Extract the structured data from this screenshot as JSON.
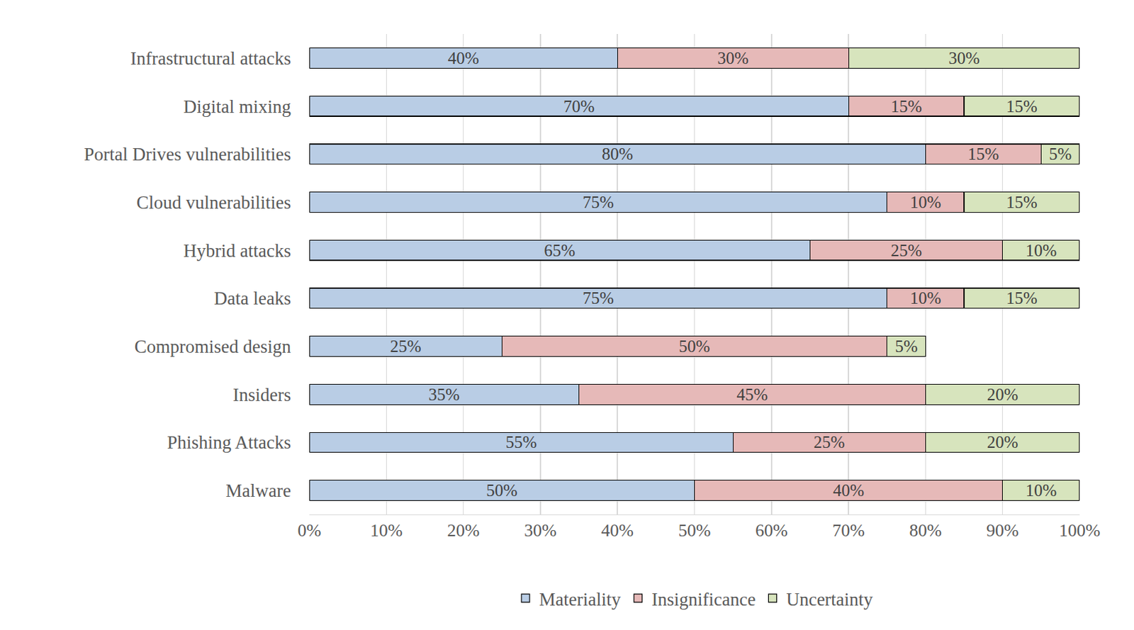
{
  "chart_data": {
    "type": "bar",
    "orientation": "horizontal",
    "stacked": true,
    "data_labels": true,
    "grid": true,
    "legend": "bottom",
    "categories": [
      "Infrastructural attacks",
      "Digital mixing",
      "Portal Drives vulnerabilities",
      "Cloud vulnerabilities",
      "Hybrid attacks",
      "Data leaks",
      "Compromised design",
      "Insiders",
      "Phishing Attacks",
      "Malware"
    ],
    "series": [
      {
        "name": "Materiality",
        "color": "#b9cde5",
        "values": [
          40,
          70,
          80,
          75,
          65,
          75,
          25,
          35,
          55,
          50
        ],
        "value_labels": [
          "40%",
          "70%",
          "80%",
          "75%",
          "65%",
          "75%",
          "25%",
          "35%",
          "55%",
          "50%"
        ]
      },
      {
        "name": "Insignificance",
        "color": "#e6b9b8",
        "values": [
          30,
          15,
          15,
          10,
          25,
          10,
          50,
          45,
          25,
          40
        ],
        "value_labels": [
          "30%",
          "15%",
          "15%",
          "10%",
          "25%",
          "10%",
          "50%",
          "45%",
          "25%",
          "40%"
        ]
      },
      {
        "name": "Uncertainty",
        "color": "#d7e4bd",
        "values": [
          30,
          15,
          5,
          15,
          10,
          15,
          5,
          20,
          20,
          10
        ],
        "value_labels": [
          "30%",
          "15%",
          "5%",
          "15%",
          "10%",
          "15%",
          "5%",
          "20%",
          "20%",
          "10%"
        ]
      }
    ],
    "xlim": [
      0,
      100
    ],
    "xticks": [
      {
        "value": 0,
        "label": "0%"
      },
      {
        "value": 10,
        "label": "10%"
      },
      {
        "value": 20,
        "label": "20%"
      },
      {
        "value": 30,
        "label": "30%"
      },
      {
        "value": 40,
        "label": "40%"
      },
      {
        "value": 50,
        "label": "50%"
      },
      {
        "value": 60,
        "label": "60%"
      },
      {
        "value": 70,
        "label": "70%"
      },
      {
        "value": 80,
        "label": "80%"
      },
      {
        "value": 90,
        "label": "90%"
      },
      {
        "value": 100,
        "label": "100%"
      }
    ]
  }
}
